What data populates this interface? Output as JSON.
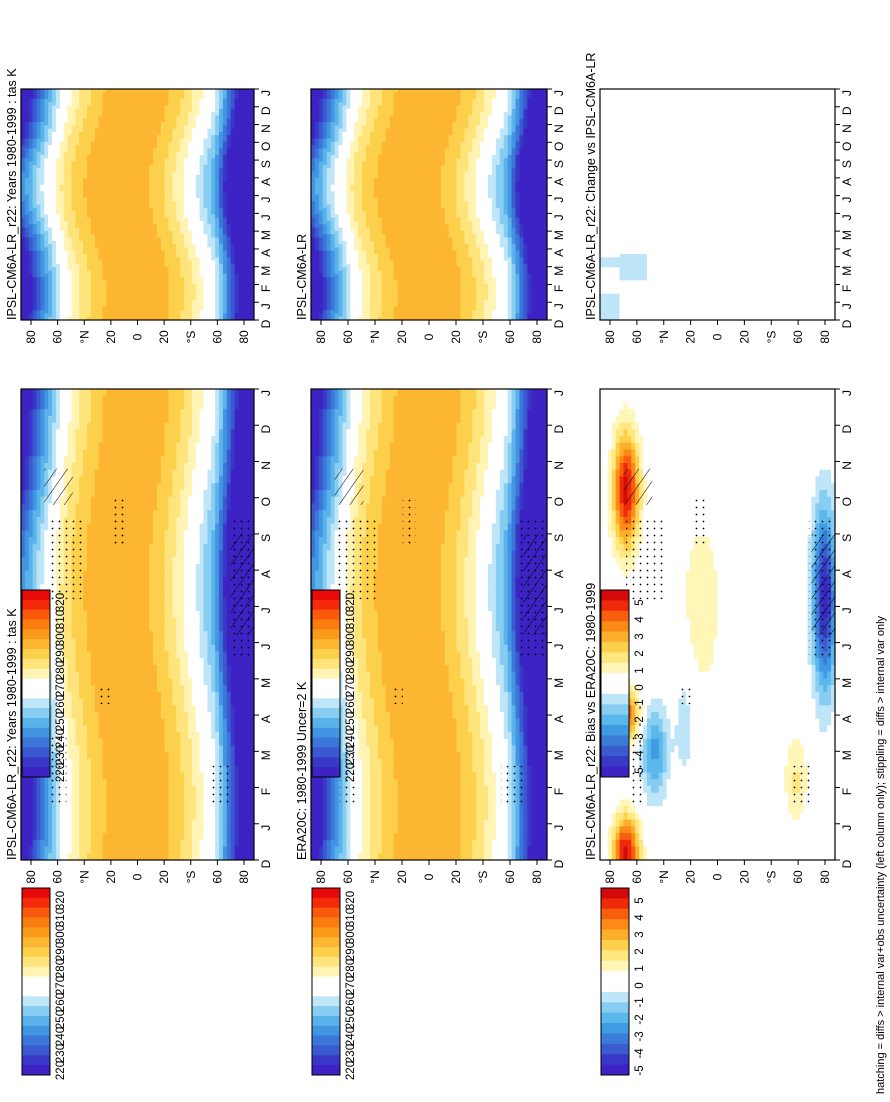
{
  "figure": {
    "footer_note": "hatching = diffs > internal var+obs uncertainty (left column only); stippling = diffs > internal var only"
  },
  "chart_data": [
    {
      "type": "heatmap",
      "title": "IPSL-CM6A-LR_r22: Years 1980-1999 : tas K",
      "x_ticks": [
        "D",
        "J",
        "F",
        "M",
        "A",
        "M",
        "J",
        "J",
        "A",
        "S",
        "O",
        "N",
        "D",
        "J"
      ],
      "y_ticks": [
        "80",
        "60",
        "°N",
        "20",
        "0",
        "20",
        "°S",
        "60",
        "80"
      ],
      "colorbar": [
        "320",
        "310",
        "300",
        "290",
        "280",
        "270",
        "260",
        "250",
        "240",
        "230",
        "220"
      ],
      "hatching": true,
      "stippling": true
    },
    {
      "type": "heatmap",
      "title": "IPSL-CM6A-LR_r22: Years 1980-1999 : tas K",
      "x_ticks": [
        "D",
        "J",
        "F",
        "M",
        "A",
        "M",
        "J",
        "J",
        "A",
        "S",
        "O",
        "N",
        "D",
        "J"
      ],
      "y_ticks": [
        "80",
        "60",
        "°N",
        "20",
        "0",
        "20",
        "°S",
        "60",
        "80"
      ],
      "colorbar": [
        "320",
        "310",
        "300",
        "290",
        "280",
        "270",
        "260",
        "250",
        "240",
        "230",
        "220"
      ],
      "hatching": false,
      "stippling": false
    },
    {
      "type": "heatmap",
      "title": "ERA20C: 1980-1999 Uncer=2 K",
      "x_ticks": [
        "D",
        "J",
        "F",
        "M",
        "A",
        "M",
        "J",
        "J",
        "A",
        "S",
        "O",
        "N",
        "D",
        "J"
      ],
      "y_ticks": [
        "80",
        "60",
        "°N",
        "20",
        "0",
        "20",
        "°S",
        "60",
        "80"
      ],
      "colorbar": [
        "320",
        "310",
        "300",
        "290",
        "280",
        "270",
        "260",
        "250",
        "240",
        "230",
        "220"
      ],
      "hatching": true,
      "stippling": true
    },
    {
      "type": "heatmap",
      "title": "IPSL-CM6A-LR",
      "x_ticks": [
        "D",
        "J",
        "F",
        "M",
        "A",
        "M",
        "J",
        "J",
        "A",
        "S",
        "O",
        "N",
        "D",
        "J"
      ],
      "y_ticks": [
        "80",
        "60",
        "°N",
        "20",
        "0",
        "20",
        "°S",
        "60",
        "80"
      ],
      "colorbar": [
        "320",
        "310",
        "300",
        "290",
        "280",
        "270",
        "260",
        "250",
        "240",
        "230",
        "220"
      ],
      "hatching": false,
      "stippling": false
    },
    {
      "type": "heatmap",
      "title": "IPSL-CM6A-LR_r22: Bias vs ERA20C: 1980-1999",
      "x_ticks": [
        "D",
        "J",
        "F",
        "M",
        "A",
        "M",
        "J",
        "J",
        "A",
        "S",
        "O",
        "N",
        "D",
        "J"
      ],
      "y_ticks": [
        "80",
        "60",
        "°N",
        "20",
        "0",
        "20",
        "°S",
        "60",
        "80"
      ],
      "colorbar": [
        "5",
        "4",
        "3",
        "2",
        "1",
        "0",
        "-1",
        "-2",
        "-3",
        "-4",
        "-5"
      ],
      "hatching": true,
      "stippling": true
    },
    {
      "type": "heatmap",
      "title": "IPSL-CM6A-LR_r22: Change vs IPSL-CM6A-LR",
      "x_ticks": [
        "D",
        "J",
        "F",
        "M",
        "A",
        "M",
        "J",
        "J",
        "A",
        "S",
        "O",
        "N",
        "D",
        "J"
      ],
      "y_ticks": [
        "80",
        "60",
        "°N",
        "20",
        "0",
        "20",
        "°S",
        "60",
        "80"
      ],
      "colorbar": [
        "5",
        "4",
        "3",
        "2",
        "1",
        "0",
        "-1",
        "-2",
        "-3",
        "-4",
        "-5"
      ],
      "hatching": false,
      "stippling": false
    }
  ],
  "colors": {
    "temp_scale": [
      "#e60a0a",
      "#f42a0a",
      "#fa5a0c",
      "#fb7d10",
      "#fb9a1a",
      "#fdb632",
      "#fdd04c",
      "#fee47a",
      "#fff4b4",
      "#ffffff",
      "#ffffff",
      "#bfe6f8",
      "#86cdf1",
      "#5ab2ea",
      "#4195e2",
      "#3b76d8",
      "#3a58cf",
      "#3838c7",
      "#3d22c4"
    ],
    "anom_scale": [
      "#d40a0a",
      "#ee2a0a",
      "#f75e0e",
      "#fb8a16",
      "#fdaf2c",
      "#fdd04c",
      "#fee77e",
      "#fff6b8",
      "#ffffff",
      "#ffffff",
      "#bfe6f8",
      "#86cdf1",
      "#5ab8ec",
      "#3f9be4",
      "#3b7cd9",
      "#3a5ccf",
      "#3838c7",
      "#3d22c4"
    ]
  }
}
